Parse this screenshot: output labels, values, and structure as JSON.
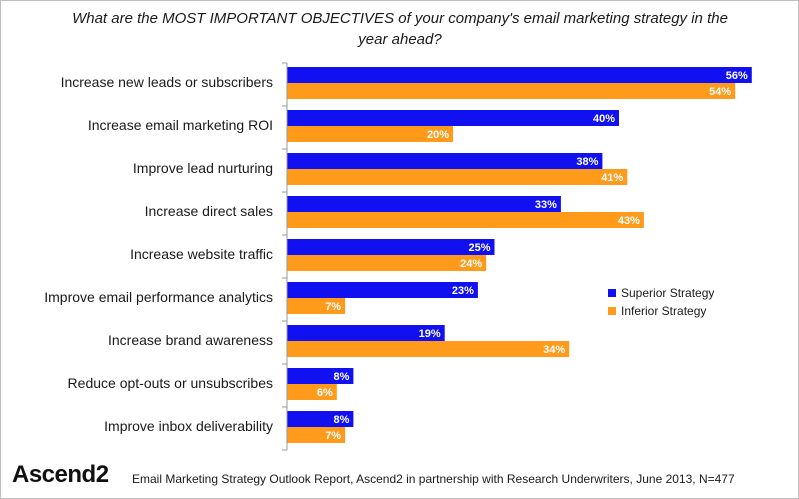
{
  "title": "What are the MOST IMPORTANT OBJECTIVES of your company's email marketing strategy in the year ahead?",
  "colors": {
    "superior": "#1010f0",
    "inferior": "#ff9a1a",
    "axis": "#9a9a9a"
  },
  "legend": [
    {
      "name": "Superior Strategy",
      "color": "#1010f0"
    },
    {
      "name": "Inferior Strategy",
      "color": "#ff9a1a"
    }
  ],
  "logo_text": "Ascend2",
  "source_text": "Email Marketing Strategy Outlook Report, Ascend2 in partnership with Research Underwriters, June 2013, N=477",
  "chart_data": {
    "type": "bar",
    "orientation": "horizontal",
    "title": "What are the MOST IMPORTANT OBJECTIVES of your company's email marketing strategy in the year ahead?",
    "categories": [
      "Increase new leads or subscribers",
      "Increase email marketing ROI",
      "Improve lead nurturing",
      "Increase direct sales",
      "Increase website traffic",
      "Improve email performance analytics",
      "Increase brand awareness",
      "Reduce opt-outs or unsubscribes",
      "Improve inbox deliverability"
    ],
    "series": [
      {
        "name": "Superior Strategy",
        "values": [
          56,
          40,
          38,
          33,
          25,
          23,
          19,
          8,
          8
        ]
      },
      {
        "name": "Inferior Strategy",
        "values": [
          54,
          20,
          41,
          43,
          24,
          7,
          34,
          6,
          7
        ]
      }
    ],
    "value_suffix": "%",
    "xlim": [
      0,
      60
    ],
    "grid": false,
    "legend_position": "right"
  }
}
